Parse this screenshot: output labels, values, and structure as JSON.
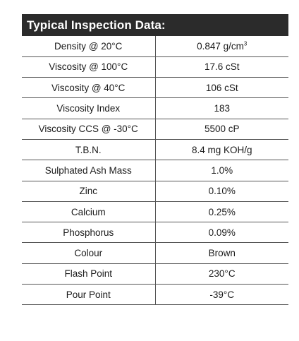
{
  "title": "Typical Inspection Data:",
  "rows": [
    {
      "property": "Density @ 20°C",
      "value": "0.847 g/cm",
      "sup": "3"
    },
    {
      "property": "Viscosity @ 100°C",
      "value": "17.6 cSt"
    },
    {
      "property": "Viscosity @ 40°C",
      "value": "106 cSt"
    },
    {
      "property": "Viscosity Index",
      "value": "183"
    },
    {
      "property": "Viscosity CCS @ -30°C",
      "value": "5500 cP"
    },
    {
      "property": "T.B.N.",
      "value": "8.4 mg KOH/g"
    },
    {
      "property": "Sulphated Ash Mass",
      "value": "1.0%"
    },
    {
      "property": "Zinc",
      "value": "0.10%"
    },
    {
      "property": "Calcium",
      "value": "0.25%"
    },
    {
      "property": "Phosphorus",
      "value": "0.09%"
    },
    {
      "property": "Colour",
      "value": "Brown"
    },
    {
      "property": "Flash Point",
      "value": "230°C"
    },
    {
      "property": "Pour Point",
      "value": "-39°C"
    }
  ]
}
